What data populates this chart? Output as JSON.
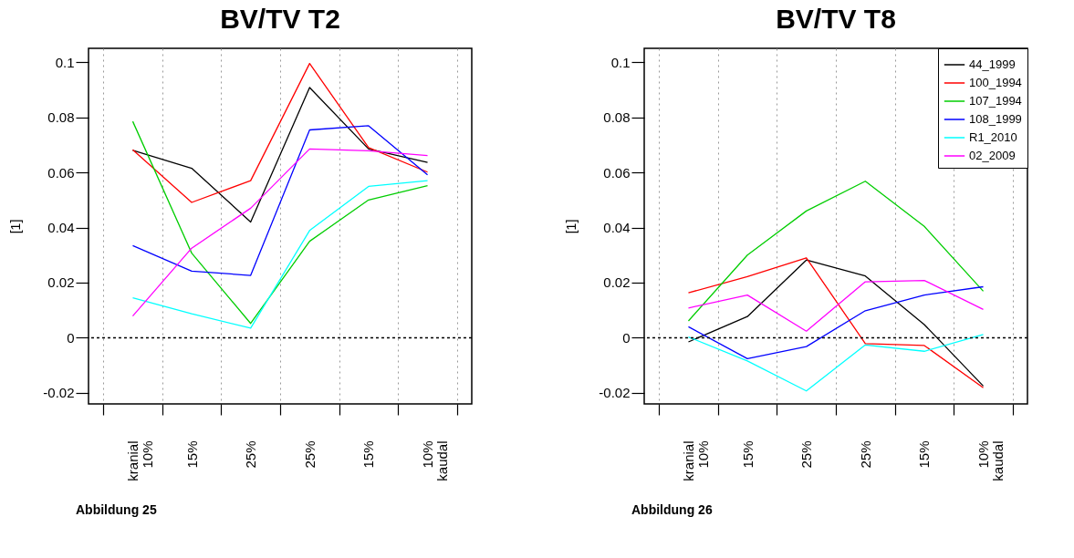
{
  "chart_data": [
    {
      "type": "line",
      "title": "BV/TV T2",
      "ylabel": "[1]",
      "annotations": [
        "Abbildung 25"
      ],
      "categories": [
        "kranial\n10%",
        "15%",
        "25%",
        "25%",
        "15%",
        "10%\nkaudal"
      ],
      "ylim": [
        -0.024,
        0.105
      ],
      "yticks": [
        -0.02,
        0,
        0.02,
        0.04,
        0.06,
        0.08,
        0.1
      ],
      "grid": "x",
      "ref_lines": [
        {
          "axis": "y",
          "value": 0,
          "label": null,
          "color": "#000000",
          "line_style": "dotted"
        }
      ],
      "series": [
        {
          "color": "#000000",
          "values": [
            0.068,
            0.0615,
            0.042,
            0.0908,
            0.0685,
            0.0636
          ]
        },
        {
          "color": "#ff0000",
          "values": [
            0.0682,
            0.0491,
            0.057,
            0.0995,
            0.069,
            0.0601
          ]
        },
        {
          "color": "#00cd00",
          "values": [
            0.0785,
            0.0307,
            0.0052,
            0.035,
            0.05,
            0.0552
          ]
        },
        {
          "color": "#0000ff",
          "values": [
            0.0334,
            0.0242,
            0.0226,
            0.0754,
            0.0769,
            0.0591
          ]
        },
        {
          "color": "#00ffff",
          "values": [
            0.0145,
            0.0087,
            0.0035,
            0.0389,
            0.0549,
            0.057
          ]
        },
        {
          "color": "#ff00ff",
          "values": [
            0.0079,
            0.0325,
            0.047,
            0.0685,
            0.0678,
            0.0661
          ]
        }
      ]
    },
    {
      "type": "line",
      "title": "BV/TV T8",
      "ylabel": "[1]",
      "annotations": [
        "Abbildung 26"
      ],
      "categories": [
        "kranial\n10%",
        "15%",
        "25%",
        "25%",
        "15%",
        "10%\nkaudal"
      ],
      "ylim": [
        -0.024,
        0.105
      ],
      "yticks": [
        -0.02,
        0,
        0.02,
        0.04,
        0.06,
        0.08,
        0.1
      ],
      "grid": "x",
      "legend": "top right",
      "ref_lines": [
        {
          "axis": "y",
          "value": 0,
          "label": null,
          "color": "#000000",
          "line_style": "dotted"
        }
      ],
      "series": [
        {
          "name": "44_1999",
          "color": "#000000",
          "values": [
            -0.0015,
            0.0077,
            0.0282,
            0.0224,
            0.0048,
            -0.0175
          ]
        },
        {
          "name": "100_1994",
          "color": "#ff0000",
          "values": [
            0.0163,
            0.0222,
            0.029,
            -0.0021,
            -0.0028,
            -0.0181
          ]
        },
        {
          "name": "107_1994",
          "color": "#00cd00",
          "values": [
            0.0061,
            0.03,
            0.046,
            0.0568,
            0.0404,
            0.0169
          ]
        },
        {
          "name": "108_1999",
          "color": "#0000ff",
          "values": [
            0.004,
            -0.0076,
            -0.0032,
            0.0098,
            0.0155,
            0.0185
          ]
        },
        {
          "name": "R1_2010",
          "color": "#00ffff",
          "values": [
            0.0003,
            -0.0084,
            -0.0193,
            -0.0026,
            -0.0049,
            0.0012
          ]
        },
        {
          "name": "02_2009",
          "color": "#ff00ff",
          "values": [
            0.0108,
            0.0155,
            0.0024,
            0.0203,
            0.0208,
            0.0103
          ]
        }
      ]
    }
  ]
}
